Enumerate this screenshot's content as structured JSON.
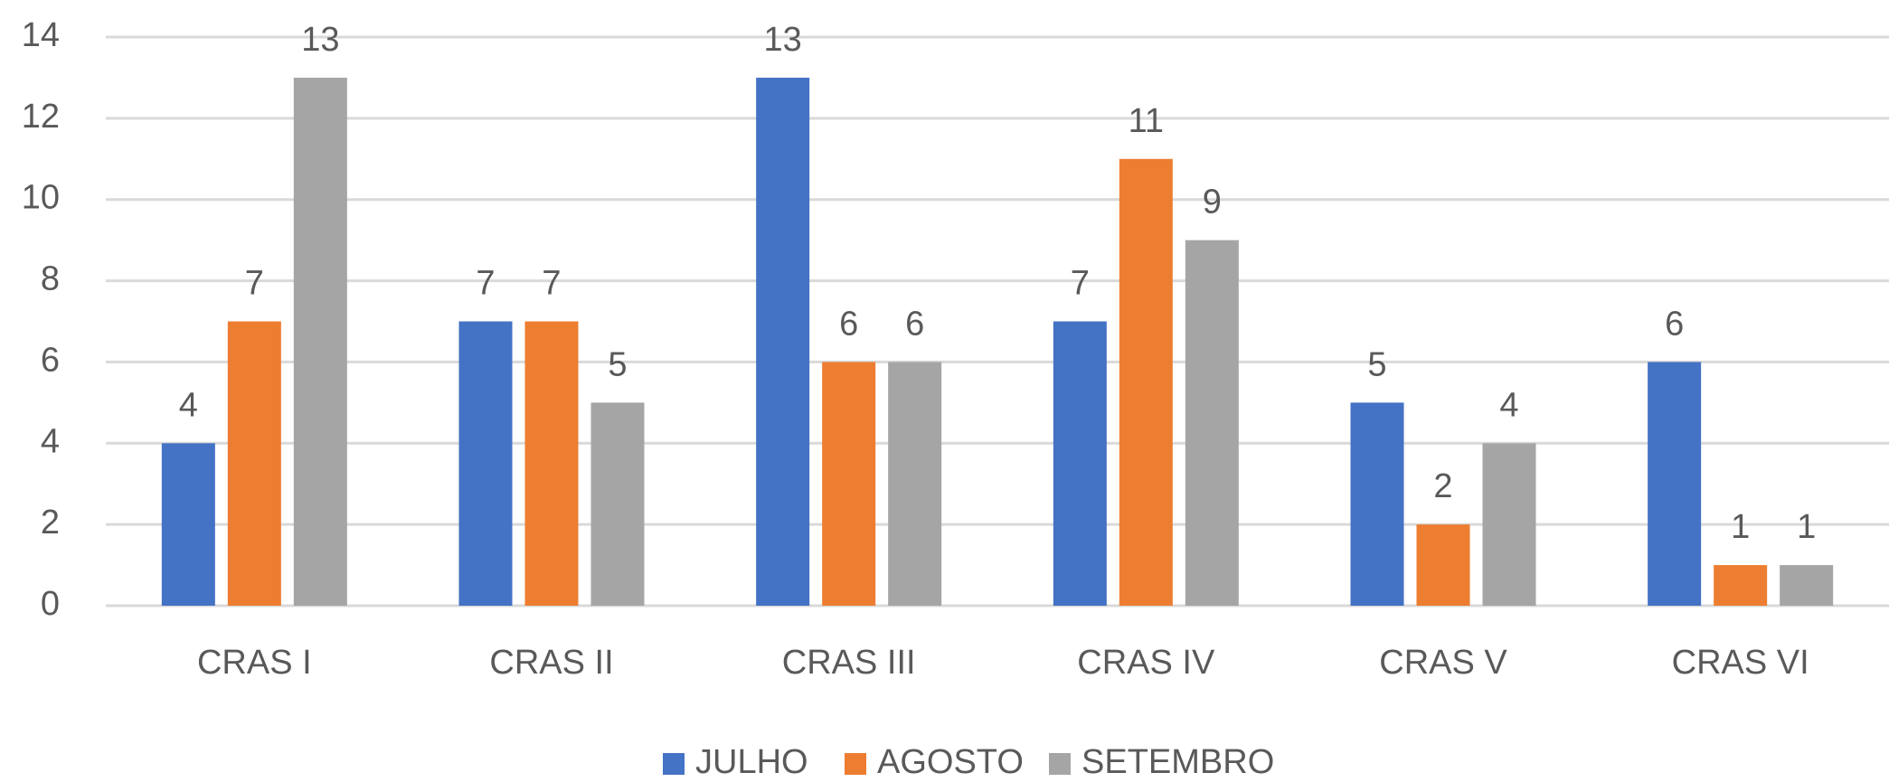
{
  "chart_data": {
    "type": "bar",
    "categories": [
      "CRAS I",
      "CRAS II",
      "CRAS III",
      "CRAS IV",
      "CRAS V",
      "CRAS VI"
    ],
    "series": [
      {
        "name": "JULHO",
        "color": "#4472c4",
        "values": [
          4,
          7,
          13,
          7,
          5,
          6
        ]
      },
      {
        "name": "AGOSTO",
        "color": "#ed7d31",
        "values": [
          7,
          7,
          6,
          11,
          2,
          1
        ]
      },
      {
        "name": "SETEMBRO",
        "color": "#a5a5a5",
        "values": [
          13,
          5,
          6,
          9,
          4,
          1
        ]
      }
    ],
    "ylim": [
      0,
      14
    ],
    "yticks": [
      0,
      2,
      4,
      6,
      8,
      10,
      12,
      14
    ],
    "grid": true,
    "legend": "bottom"
  }
}
